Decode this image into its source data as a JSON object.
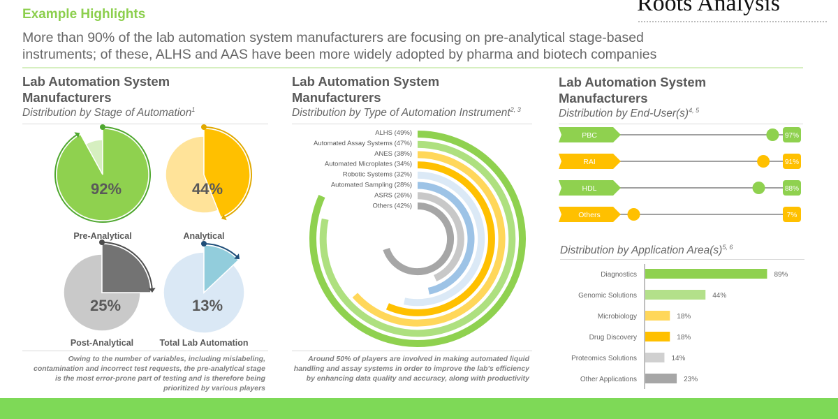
{
  "header": {
    "title": "Example Highlights",
    "summary": [
      "More than 90% of the lab automation system manufacturers are focusing on pre-analytical stage-based",
      "instruments; of these, ALHS and AAS have been more widely adopted by pharma and biotech companies"
    ]
  },
  "logo": {
    "text": "Roots Analysis"
  },
  "panels": {
    "stage": {
      "title_1": "Lab Automation System",
      "title_2": "Manufacturers",
      "subtitle": "Distribution by Stage of Automation",
      "sup": "1",
      "caption": "Owing to the number of variables, including mislabeling, contamination and incorrect test requests, the pre-analytical stage is the most error-prone part of testing and is therefore being prioritized by various players"
    },
    "instrument": {
      "title_1": "Lab Automation System",
      "title_2": "Manufacturers",
      "subtitle": "Distribution by Type of Automation Instrument",
      "sup": "2, 3",
      "caption": "Around 50% of players are involved in making automated liquid handling and assay systems in order to improve the lab's efficiency by enhancing data quality and accuracy, along with productivity"
    },
    "enduser": {
      "title_1": "Lab Automation System",
      "title_2": "Manufacturers",
      "subtitle": "Distribution by End-User(s)",
      "sup": "4, 5"
    },
    "application": {
      "subtitle": "Distribution by Application Area(s)",
      "sup": "5, 6"
    }
  },
  "chart_data": [
    {
      "type": "pie",
      "items": [
        {
          "label": "Pre-Analytical",
          "value": 92,
          "value_label": "92%",
          "color": "#8fd14f",
          "rest_color": "#d6efc0",
          "arrow_color": "#4ea72e"
        },
        {
          "label": "Analytical",
          "value": 44,
          "value_label": "44%",
          "color": "#ffc000",
          "rest_color": "#ffe399",
          "arrow_color": "#e0a800"
        },
        {
          "label": "Post-Analytical",
          "value": 25,
          "value_label": "25%",
          "color": "#737373",
          "rest_color": "#c9c9c9",
          "arrow_color": "#4d4d4d"
        },
        {
          "label": "Total Lab Automation",
          "value": 13,
          "value_label": "13%",
          "color": "#92cddc",
          "rest_color": "#dae8f5",
          "arrow_color": "#1f4e79"
        }
      ]
    },
    {
      "type": "radial-bar",
      "categories": [
        "ALHS (49%)",
        "Automated Assay Systems (47%)",
        "ANES (38%)",
        "Automated Microplates (34%)",
        "Robotic Systems (32%)",
        "Automated Sampling (28%)",
        "ASRS (26%)",
        "Others (42%)"
      ],
      "values": [
        49,
        47,
        38,
        34,
        32,
        28,
        26,
        42
      ],
      "colors": [
        "#8fd14f",
        "#aee07f",
        "#ffd75a",
        "#ffc000",
        "#dbe9f6",
        "#9dc3e6",
        "#c8c8c8",
        "#a6a6a6"
      ]
    },
    {
      "type": "lollipop",
      "categories": [
        "PBC",
        "RAI",
        "HDL",
        "Others"
      ],
      "values": [
        97,
        91,
        88,
        7
      ],
      "value_labels": [
        "97%",
        "91%",
        "88%",
        "7%"
      ],
      "colors": [
        "#8fd14f",
        "#ffc000",
        "#8fd14f",
        "#ffc000"
      ],
      "xlim": [
        0,
        100
      ]
    },
    {
      "type": "bar",
      "orientation": "horizontal",
      "categories": [
        "Diagnostics",
        "Genomic Solutions",
        "Microbiology",
        "Drug Discovery",
        "Proteomics Solutions",
        "Other Applications"
      ],
      "values": [
        89,
        44,
        18,
        18,
        14,
        23
      ],
      "value_labels": [
        "89%",
        "44%",
        "18%",
        "18%",
        "14%",
        "23%"
      ],
      "colors": [
        "#8fd14f",
        "#b3e08a",
        "#ffd75a",
        "#ffc000",
        "#d0d0d0",
        "#a6a6a6"
      ]
    }
  ]
}
